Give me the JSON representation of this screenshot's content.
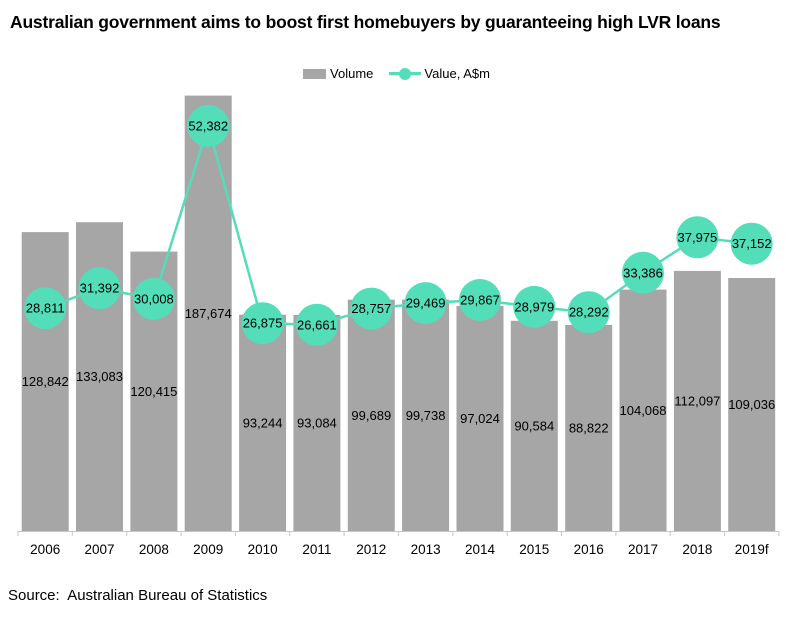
{
  "title": "Australian government aims to boost first homebuyers by guaranteeing high LVR loans",
  "source": "Source:  Australian Bureau of Statistics",
  "legend": {
    "volume_label": "Volume",
    "value_label": "Value, A$m"
  },
  "colors": {
    "bar": "#a6a6a6",
    "line": "#54ddb9",
    "axis": "#c6c6c6",
    "label_text": "#000000"
  },
  "chart_data": {
    "type": "bar",
    "combo": "bar+line",
    "title": "Australian government aims to boost first homebuyers by guaranteeing high LVR loans",
    "categories": [
      "2006",
      "2007",
      "2008",
      "2009",
      "2010",
      "2011",
      "2012",
      "2013",
      "2014",
      "2015",
      "2016",
      "2017",
      "2018",
      "2019f"
    ],
    "series": [
      {
        "name": "Volume",
        "type": "bar",
        "axis": "primary",
        "values": [
          128842,
          133083,
          120415,
          187674,
          93244,
          93084,
          99689,
          99738,
          97024,
          90584,
          88822,
          104068,
          112097,
          109036
        ]
      },
      {
        "name": "Value, A$m",
        "type": "line",
        "axis": "secondary",
        "values": [
          28811,
          31392,
          30008,
          52382,
          26875,
          26661,
          28757,
          29469,
          29867,
          28979,
          28292,
          33386,
          37975,
          37152
        ]
      }
    ],
    "xlabel": "",
    "ylabel": "",
    "primary_axis_range": [
      0,
      200000
    ],
    "secondary_axis_range": [
      0,
      60000
    ],
    "grid": false,
    "data_labels": true,
    "legend_position": "top",
    "source_note": "Source:  Australian Bureau of Statistics"
  }
}
